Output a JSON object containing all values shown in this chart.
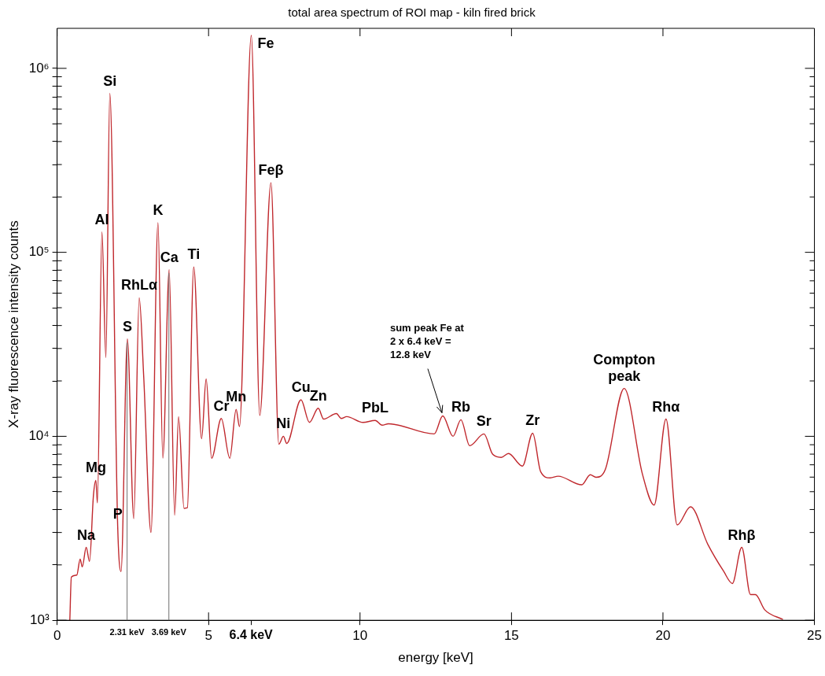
{
  "chart_data": {
    "type": "line",
    "title": "total area spectrum of ROI map - kiln fired brick",
    "xlabel": "energy [keV]",
    "ylabel": "X-ray fluorescence intensity counts",
    "log": "y",
    "xlim": [
      0,
      25
    ],
    "ylim": [
      1000,
      1650000
    ],
    "xticks": [
      0,
      5,
      {
        "value": 6.4,
        "label": "6.4 keV"
      },
      10,
      15,
      20,
      25
    ],
    "yticks": [
      {
        "value": 1000,
        "label": "10³"
      },
      {
        "value": 2000,
        "label": null
      },
      {
        "value": 3000,
        "label": null
      },
      {
        "value": 4000,
        "label": null
      },
      {
        "value": 5000,
        "label": null
      },
      {
        "value": 6000,
        "label": null
      },
      {
        "value": 7000,
        "label": null
      },
      {
        "value": 8000,
        "label": null
      },
      {
        "value": 9000,
        "label": null
      },
      {
        "value": 10000,
        "label": "10⁴"
      },
      {
        "value": 20000,
        "label": null
      },
      {
        "value": 30000,
        "label": null
      },
      {
        "value": 40000,
        "label": null
      },
      {
        "value": 50000,
        "label": null
      },
      {
        "value": 60000,
        "label": null
      },
      {
        "value": 70000,
        "label": null
      },
      {
        "value": 80000,
        "label": null
      },
      {
        "value": 90000,
        "label": null
      },
      {
        "value": 100000,
        "label": "10⁵"
      },
      {
        "value": 200000,
        "label": null
      },
      {
        "value": 300000,
        "label": null
      },
      {
        "value": 400000,
        "label": null
      },
      {
        "value": 500000,
        "label": null
      },
      {
        "value": 600000,
        "label": null
      },
      {
        "value": 700000,
        "label": null
      },
      {
        "value": 800000,
        "label": null
      },
      {
        "value": 900000,
        "label": null
      },
      {
        "value": 1000000,
        "label": "10⁶"
      }
    ],
    "series": [
      {
        "color": "#c0282d",
        "x": [
          0.42,
          0.47,
          0.65,
          0.76,
          0.83,
          0.96,
          1.07,
          1.2,
          1.28,
          1.33,
          1.48,
          1.61,
          1.74,
          2.0,
          2.11,
          2.32,
          2.53,
          2.71,
          2.86,
          3.1,
          3.33,
          3.49,
          3.7,
          3.88,
          4.01,
          4.19,
          4.3,
          4.51,
          4.77,
          4.92,
          5.1,
          5.42,
          5.7,
          5.91,
          6.02,
          6.41,
          6.69,
          7.06,
          7.32,
          7.47,
          7.58,
          8.05,
          8.33,
          8.62,
          8.8,
          9.22,
          9.38,
          9.56,
          10.1,
          10.5,
          10.73,
          10.94,
          12.45,
          12.73,
          13.07,
          13.33,
          13.62,
          14.09,
          14.38,
          14.66,
          14.9,
          15.36,
          15.7,
          15.96,
          16.28,
          16.54,
          17.32,
          17.6,
          17.79,
          18.1,
          18.72,
          19.32,
          19.71,
          20.1,
          20.47,
          20.91,
          21.48,
          22.0,
          22.29,
          22.6,
          22.89,
          23.05,
          23.36,
          23.96
        ],
        "values": [
          1000,
          1720,
          1760,
          2150,
          1950,
          2490,
          2090,
          4790,
          5760,
          4350,
          129000,
          26800,
          730000,
          3240,
          1840,
          33800,
          3570,
          56600,
          20900,
          3000,
          145000,
          7610,
          80500,
          3720,
          12800,
          4060,
          4090,
          83200,
          9700,
          20500,
          7600,
          12500,
          7600,
          14000,
          11300,
          1510000,
          13000,
          239000,
          9060,
          10000,
          9150,
          15800,
          11900,
          14200,
          12400,
          13300,
          12500,
          12800,
          11900,
          12200,
          11500,
          11700,
          10300,
          12900,
          10000,
          12300,
          8890,
          10300,
          7980,
          7680,
          8060,
          6890,
          10400,
          6440,
          5940,
          6070,
          5450,
          6180,
          5990,
          6620,
          18200,
          6250,
          4230,
          12400,
          3300,
          4140,
          2590,
          1850,
          1585,
          2490,
          1380,
          1380,
          1140,
          1010
        ]
      }
    ],
    "ref_lines": [
      {
        "axis": "x",
        "value": 2.31,
        "label": "2.31 keV",
        "color": "#707070"
      },
      {
        "axis": "x",
        "value": 3.69,
        "label": "3.69 keV",
        "color": "#707070"
      }
    ],
    "annotations": [
      {
        "text": "Na",
        "x": 0.96,
        "y": 2490
      },
      {
        "text": "Mg",
        "x": 1.28,
        "y": 5760
      },
      {
        "text": "P",
        "x": 2.0,
        "y": 3240
      },
      {
        "text": "Al",
        "x": 1.48,
        "y": 129000
      },
      {
        "text": "Si",
        "x": 1.74,
        "y": 730000
      },
      {
        "text": "S",
        "x": 2.32,
        "y": 33800
      },
      {
        "text": "RhLα",
        "x": 2.71,
        "y": 56600
      },
      {
        "text": "K",
        "x": 3.33,
        "y": 145000
      },
      {
        "text": "Ca",
        "x": 3.7,
        "y": 80500
      },
      {
        "text": "Ti",
        "x": 4.51,
        "y": 83200
      },
      {
        "text": "Fe",
        "x": 6.41,
        "y": 1510000
      },
      {
        "text": "Feβ",
        "x": 7.06,
        "y": 239000
      },
      {
        "text": "Cr",
        "x": 5.42,
        "y": 12500
      },
      {
        "text": "Mn",
        "x": 5.91,
        "y": 14000
      },
      {
        "text": "Ni",
        "x": 7.47,
        "y": 10000
      },
      {
        "text": "Cu",
        "x": 8.05,
        "y": 15800
      },
      {
        "text": "Zn",
        "x": 8.62,
        "y": 14200
      },
      {
        "text": "PbL",
        "x": 10.5,
        "y": 12200
      },
      {
        "text": "Rb",
        "x": 13.33,
        "y": 12300
      },
      {
        "text": "Sr",
        "x": 14.09,
        "y": 10300
      },
      {
        "text": "Zr",
        "x": 15.7,
        "y": 10400
      },
      {
        "text": "Compton\npeak",
        "x": 18.72,
        "y": 18200
      },
      {
        "text": "Rhα",
        "x": 20.1,
        "y": 12400
      },
      {
        "text": "Rhβ",
        "x": 22.6,
        "y": 2490
      },
      {
        "text": "sum peak Fe at\n2 x 6.4 keV =\n12.8 keV",
        "x": 12.73,
        "y": 12900
      }
    ]
  }
}
